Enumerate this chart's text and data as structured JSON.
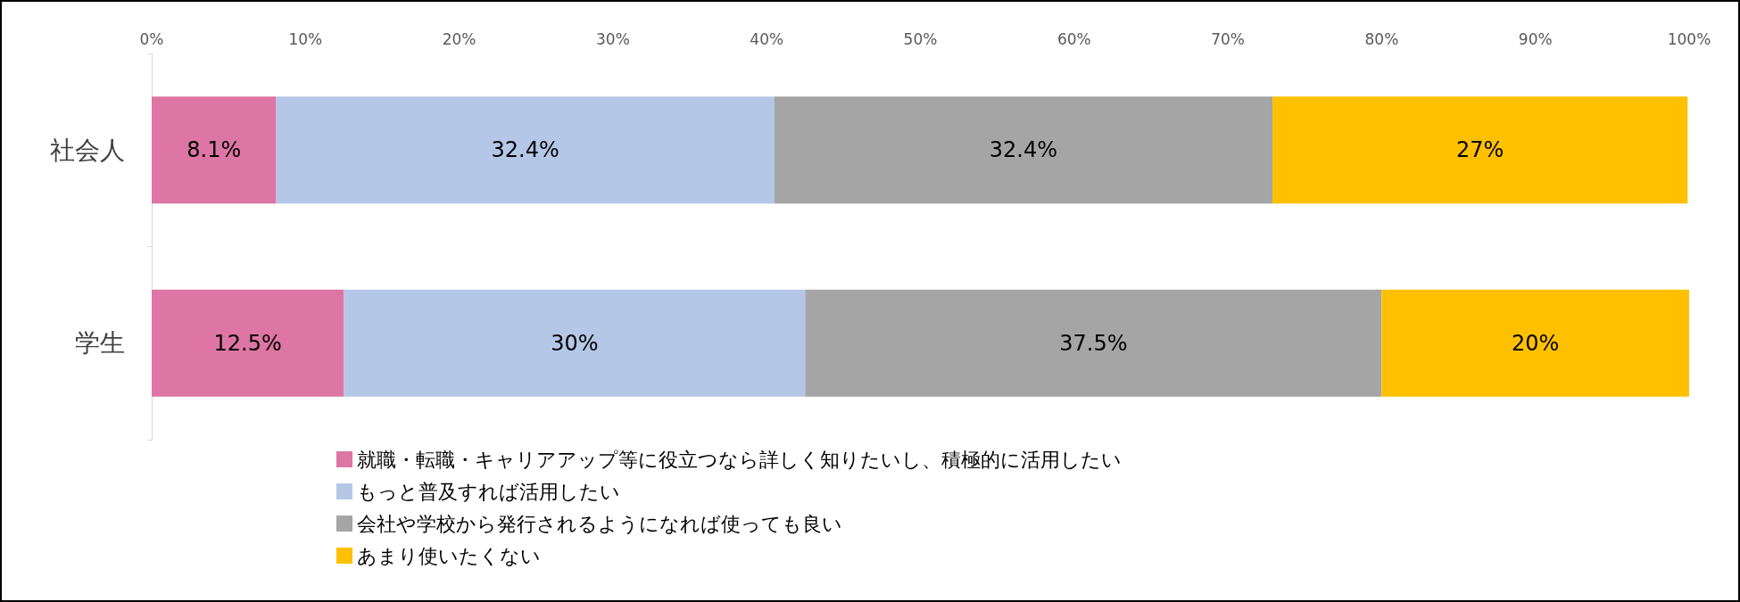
{
  "chart_data": {
    "type": "bar",
    "orientation": "horizontal",
    "stacked": true,
    "categories": [
      "社会人",
      "学生"
    ],
    "series": [
      {
        "name": "就職・転職・キャリアアップ等に役立つなら詳しく知りたいし、積極的に活用したい",
        "color": "#dd76a4",
        "values": [
          8.1,
          12.5
        ],
        "value_labels": [
          "8.1%",
          "12.5%"
        ]
      },
      {
        "name": "もっと普及すれば活用したい",
        "color": "#b4c7e7",
        "values": [
          32.4,
          30
        ],
        "value_labels": [
          "32.4%",
          "30%"
        ]
      },
      {
        "name": "会社や学校から発行されるようになれば使っても良い",
        "color": "#a5a5a5",
        "values": [
          32.4,
          37.5
        ],
        "value_labels": [
          "32.4%",
          "37.5%"
        ]
      },
      {
        "name": "あまり使いたくない",
        "color": "#ffc000",
        "values": [
          27,
          20
        ],
        "value_labels": [
          "27%",
          "20%"
        ]
      }
    ],
    "xlim": [
      0,
      100
    ],
    "xticks": [
      {
        "value": 0,
        "label": "0%"
      },
      {
        "value": 10,
        "label": "10%"
      },
      {
        "value": 20,
        "label": "20%"
      },
      {
        "value": 30,
        "label": "30%"
      },
      {
        "value": 40,
        "label": "40%"
      },
      {
        "value": 50,
        "label": "50%"
      },
      {
        "value": 60,
        "label": "60%"
      },
      {
        "value": 70,
        "label": "70%"
      },
      {
        "value": 80,
        "label": "80%"
      },
      {
        "value": 90,
        "label": "90%"
      },
      {
        "value": 100,
        "label": "100%"
      }
    ],
    "grid": false,
    "legend": "bottom"
  }
}
